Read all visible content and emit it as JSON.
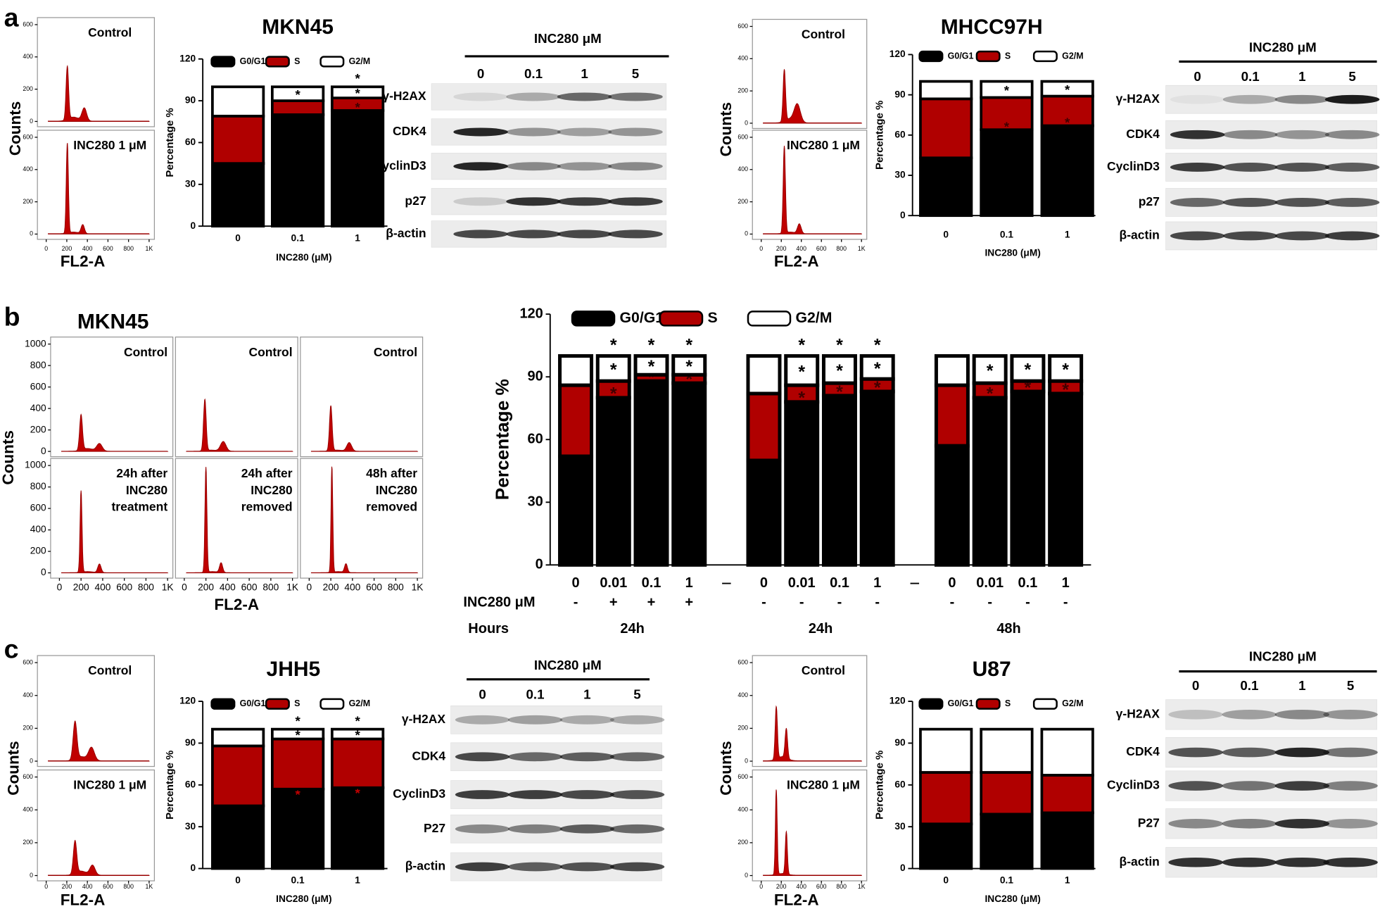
{
  "panel_labels": [
    "a",
    "b",
    "c"
  ],
  "chart_data": [
    {
      "type": "stacked-bar",
      "title": "MKN45",
      "ylabel": "Percentage %",
      "xlabel": "INC280 (μM)",
      "categories": [
        "0",
        "0.1",
        "1"
      ],
      "ylim": [
        0,
        120
      ],
      "yticks": [
        0,
        30,
        60,
        90,
        120
      ],
      "series": [
        {
          "name": "G0/G1",
          "color": "#000000",
          "values": [
            45,
            80,
            83
          ],
          "marks": [
            null,
            null,
            null
          ]
        },
        {
          "name": "S",
          "color": "#b00000",
          "values": [
            34,
            10,
            9
          ],
          "marks": [
            null,
            null,
            "*"
          ]
        },
        {
          "name": "G2/M",
          "color": "#ffffff",
          "values": [
            21,
            10,
            8
          ],
          "marks": [
            null,
            "*",
            "*"
          ]
        }
      ],
      "bar_marks": [
        null,
        null,
        "*"
      ]
    },
    {
      "type": "stacked-bar",
      "title": "MHCC97H",
      "ylabel": "Percentage %",
      "xlabel": "INC280 (μM)",
      "categories": [
        "0",
        "0.1",
        "1"
      ],
      "ylim": [
        0,
        120
      ],
      "yticks": [
        0,
        30,
        60,
        90,
        120
      ],
      "series": [
        {
          "name": "G0/G1",
          "color": "#000000",
          "values": [
            43,
            64,
            67
          ],
          "marks": [
            null,
            null,
            null
          ]
        },
        {
          "name": "S",
          "color": "#b00000",
          "values": [
            44,
            24,
            22
          ],
          "marks": [
            null,
            "*",
            "*"
          ]
        },
        {
          "name": "G2/M",
          "color": "#ffffff",
          "values": [
            13,
            12,
            11
          ],
          "marks": [
            null,
            "*",
            "*"
          ]
        }
      ]
    },
    {
      "type": "stacked-bar",
      "ylabel": "Percentage %",
      "categories": [
        "0",
        "0.01",
        "0.1",
        "1",
        "0",
        "0.01",
        "0.1",
        "1",
        "0",
        "0.01",
        "0.1",
        "1"
      ],
      "ylim": [
        0,
        120
      ],
      "yticks": [
        0,
        30,
        60,
        90,
        120
      ],
      "series": [
        {
          "name": "G0/G1",
          "color": "#000000",
          "values": [
            52,
            80,
            88,
            87,
            50,
            78,
            81,
            83,
            57,
            80,
            83,
            82
          ],
          "marks": [
            null,
            null,
            null,
            null,
            null,
            null,
            null,
            null,
            null,
            null,
            null,
            null
          ]
        },
        {
          "name": "S",
          "color": "#b00000",
          "values": [
            34,
            8,
            3,
            4,
            32,
            8,
            6,
            6,
            29,
            7,
            5,
            6
          ],
          "marks": [
            null,
            "*",
            "*",
            "*",
            null,
            "*",
            "*",
            "*",
            null,
            "*",
            "*",
            "*"
          ]
        },
        {
          "name": "G2/M",
          "color": "#ffffff",
          "values": [
            14,
            12,
            9,
            9,
            18,
            14,
            13,
            11,
            14,
            13,
            12,
            12
          ],
          "marks": [
            null,
            "*",
            "*",
            "*",
            null,
            "*",
            "*",
            "*",
            null,
            "*",
            "*",
            "*"
          ]
        }
      ],
      "bar_marks": [
        null,
        "*",
        "*",
        "*",
        null,
        "*",
        "*",
        "*",
        null,
        null,
        null,
        null
      ],
      "rows": [
        {
          "label": "INC280 μM",
          "values": [
            "-",
            "+",
            "+",
            "+",
            "-",
            "-",
            "-",
            "-",
            "-",
            "-",
            "-",
            "-"
          ]
        }
      ],
      "groups": {
        "label": "Hours",
        "values": [
          "24h",
          "24h",
          "48h"
        ]
      }
    },
    {
      "type": "stacked-bar",
      "title": "JHH5",
      "ylabel": "Percentage %",
      "xlabel": "INC280 (μM)",
      "categories": [
        "0",
        "0.1",
        "1"
      ],
      "ylim": [
        0,
        120
      ],
      "yticks": [
        0,
        30,
        60,
        90,
        120
      ],
      "series": [
        {
          "name": "G0/G1",
          "color": "#000000",
          "values": [
            45,
            57,
            58
          ],
          "marks": [
            null,
            "*",
            "*"
          ]
        },
        {
          "name": "S",
          "color": "#b00000",
          "values": [
            43,
            36,
            35
          ],
          "marks": [
            null,
            null,
            null
          ]
        },
        {
          "name": "G2/M",
          "color": "#ffffff",
          "values": [
            12,
            7,
            7
          ],
          "marks": [
            null,
            "*",
            "*"
          ]
        }
      ],
      "bar_marks": [
        null,
        "*",
        "*"
      ]
    },
    {
      "type": "stacked-bar",
      "title": "U87",
      "ylabel": "Percentage %",
      "xlabel": "INC280 (μM)",
      "categories": [
        "0",
        "0.1",
        "1"
      ],
      "ylim": [
        0,
        120
      ],
      "yticks": [
        0,
        30,
        60,
        90,
        120
      ],
      "series": [
        {
          "name": "G0/G1",
          "color": "#000000",
          "values": [
            32,
            39,
            40
          ]
        },
        {
          "name": "S",
          "color": "#b00000",
          "values": [
            37,
            30,
            27
          ]
        },
        {
          "name": "G2/M",
          "color": "#ffffff",
          "values": [
            31,
            31,
            33
          ]
        }
      ]
    }
  ],
  "flow": [
    {
      "ylabel": "Counts",
      "xlabel": "FL2-A",
      "xlim": [
        0,
        1000
      ],
      "ylim": [
        0,
        600
      ],
      "xticks": [
        0,
        200,
        400,
        600,
        800,
        {
          "value": 1000,
          "label": "1K"
        }
      ],
      "yticks": [
        0,
        200,
        400,
        600
      ],
      "panels": [
        {
          "label": [
            "Control"
          ]
        },
        {
          "label": [
            "INC280 1 μM"
          ]
        }
      ]
    },
    {
      "ylabel": "Counts",
      "xlabel": "FL2-A",
      "xlim": [
        0,
        1000
      ],
      "ylim": [
        0,
        600
      ],
      "xticks": [
        0,
        200,
        400,
        600,
        800,
        {
          "value": 1000,
          "label": "1K"
        }
      ],
      "yticks": [
        0,
        200,
        400,
        600
      ],
      "panels": [
        {
          "label": [
            "Control"
          ]
        },
        {
          "label": [
            "INC280 1 μM"
          ]
        }
      ]
    },
    {
      "title": "MKN45",
      "ylabel": "Counts",
      "xlabel": "FL2-A",
      "xlim": [
        0,
        1000
      ],
      "ylim": [
        0,
        1000
      ],
      "xticks": [
        0,
        200,
        400,
        600,
        800,
        {
          "value": 1000,
          "label": "1K"
        }
      ],
      "yticks": [
        0,
        200,
        400,
        600,
        800,
        1000
      ],
      "panels": [
        {
          "label": [
            "Control"
          ]
        },
        {
          "label": [
            "Control"
          ]
        },
        {
          "label": [
            "Control"
          ]
        },
        {
          "label": [
            "24h after",
            "INC280",
            "treatment"
          ]
        },
        {
          "label": [
            "24h after",
            "INC280",
            "removed"
          ]
        },
        {
          "label": [
            "48h after",
            "INC280",
            "removed"
          ]
        }
      ]
    },
    {
      "ylabel": "Counts",
      "xlabel": "FL2-A",
      "xlim": [
        0,
        1000
      ],
      "ylim": [
        0,
        600
      ],
      "xticks": [
        0,
        200,
        400,
        600,
        800,
        {
          "value": 1000,
          "label": "1K"
        }
      ],
      "yticks": [
        0,
        200,
        400,
        600
      ],
      "panels": [
        {
          "label": [
            "Control"
          ]
        },
        {
          "label": [
            "INC280 1 μM"
          ]
        }
      ]
    },
    {
      "ylabel": "Counts",
      "xlabel": "FL2-A",
      "xlim": [
        0,
        1000
      ],
      "ylim": [
        0,
        600
      ],
      "xticks": [
        0,
        200,
        400,
        600,
        800,
        {
          "value": 1000,
          "label": "1K"
        }
      ],
      "yticks": [
        0,
        200,
        400,
        600
      ],
      "panels": [
        {
          "label": [
            "Control"
          ]
        },
        {
          "label": [
            "INC280 1 μM"
          ]
        }
      ]
    }
  ],
  "blots": [
    {
      "title": "INC280 μM",
      "doses": [
        "0",
        "0.1",
        "1",
        "5"
      ],
      "rows": [
        "γ-H2AX",
        "CDK4",
        "CyclinD3",
        "p27",
        "β-actin"
      ]
    },
    {
      "title": "INC280 μM",
      "doses": [
        "0",
        "0.1",
        "1",
        "5"
      ],
      "rows": [
        "γ-H2AX",
        "CDK4",
        "CyclinD3",
        "p27",
        "β-actin"
      ]
    },
    {
      "title": "INC280 μM",
      "doses": [
        "0",
        "0.1",
        "1",
        "5"
      ],
      "rows": [
        "γ-H2AX",
        "CDK4",
        "CyclinD3",
        "P27",
        "β-actin"
      ]
    },
    {
      "title": "INC280 μM",
      "doses": [
        "0",
        "0.1",
        "1",
        "5"
      ],
      "rows": [
        "γ-H2AX",
        "CDK4",
        "CyclinD3",
        "P27",
        "β-actin"
      ]
    }
  ]
}
